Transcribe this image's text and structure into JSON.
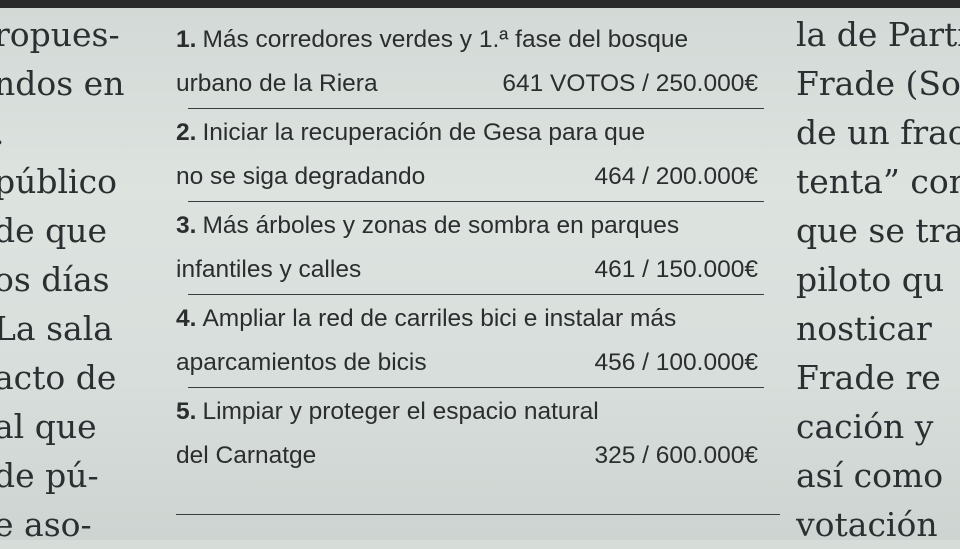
{
  "left_column": [
    "ropues-",
    "ndos en",
    ".",
    "público",
    "de que",
    "os días",
    "La sala",
    "acto de",
    "al que",
    "de pú-",
    "e aso-"
  ],
  "right_column": [
    "la de Parti",
    "Frade (Sor",
    "de un fraca",
    "tenta” con",
    "que se tra",
    "piloto qu",
    "nosticar",
    "Frade re",
    "cación y",
    "así como",
    "votación"
  ],
  "items": [
    {
      "number": "1.",
      "line1": "Más corredores verdes y 1.ª fase del bosque",
      "line2": "urbano de la Riera",
      "votes": "641 VOTOS / 250.000€"
    },
    {
      "number": "2.",
      "line1": "Iniciar la recuperación de Gesa para que",
      "line2": "no se siga degradando",
      "votes": "464 / 200.000€"
    },
    {
      "number": "3.",
      "line1": "Más árboles y zonas de sombra en parques",
      "line2": "infantiles y calles",
      "votes": "461 / 150.000€"
    },
    {
      "number": "4.",
      "line1": "Ampliar la red de carriles bici e instalar más",
      "line2": "aparcamientos de bicis",
      "votes": "456 / 100.000€"
    },
    {
      "number": "5.",
      "line1": "Limpiar y proteger el espacio natural",
      "line2": "del Carnatge",
      "votes": "325 / 600.000€"
    }
  ]
}
